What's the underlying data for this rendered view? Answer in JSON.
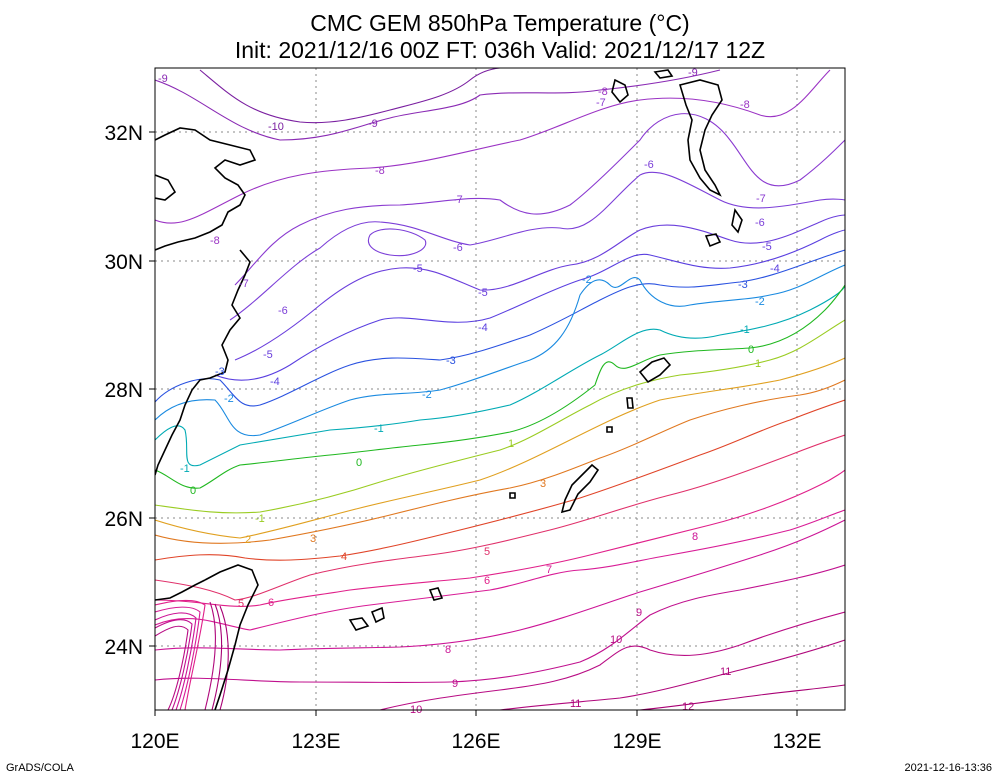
{
  "title": {
    "line1": "CMC GEM 850hPa Temperature (°C)",
    "line2": "Init: 2021/12/16 00Z  FT: 036h  Valid: 2021/12/17 12Z"
  },
  "footer": {
    "left": "GrADS/COLA",
    "right": "2021-12-16-13:36"
  },
  "axes": {
    "lon_ticks": [
      "120E",
      "123E",
      "126E",
      "129E",
      "132E"
    ],
    "lat_ticks": [
      "32N",
      "30N",
      "28N",
      "26N",
      "24N"
    ]
  },
  "contours": [
    {
      "value": -10,
      "color": "#7a1fa0"
    },
    {
      "value": -9,
      "color": "#8a2ab4"
    },
    {
      "value": -8,
      "color": "#9b33c4"
    },
    {
      "value": -7,
      "color": "#8a3ad0"
    },
    {
      "value": -6,
      "color": "#7c3fd8"
    },
    {
      "value": -5,
      "color": "#6a3edc"
    },
    {
      "value": -4,
      "color": "#5a3fe0"
    },
    {
      "value": -3,
      "color": "#2a52e0"
    },
    {
      "value": -2,
      "color": "#1a8ae0"
    },
    {
      "value": -1,
      "color": "#00aab4"
    },
    {
      "value": 0,
      "color": "#20b820"
    },
    {
      "value": 1,
      "color": "#9acc22"
    },
    {
      "value": 2,
      "color": "#e0a020"
    },
    {
      "value": 3,
      "color": "#e07820"
    },
    {
      "value": 4,
      "color": "#e04428"
    },
    {
      "value": 5,
      "color": "#e0306a"
    },
    {
      "value": 6,
      "color": "#e0208a"
    },
    {
      "value": 7,
      "color": "#d81c96"
    },
    {
      "value": 8,
      "color": "#cc1496"
    },
    {
      "value": 9,
      "color": "#c0108e"
    },
    {
      "value": 10,
      "color": "#b80c84"
    },
    {
      "value": 11,
      "color": "#b0087c"
    },
    {
      "value": 12,
      "color": "#a80074"
    }
  ]
}
